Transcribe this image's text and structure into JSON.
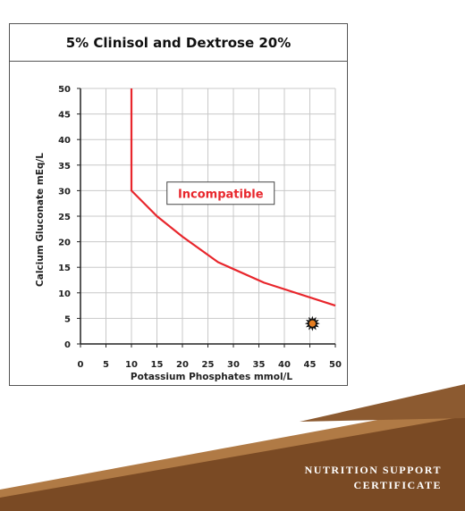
{
  "chart_data": {
    "type": "line",
    "title": "5% Clinisol and Dextrose 20%",
    "xlabel": "Potassium Phosphates mmol/L",
    "ylabel": "Calcium Gluconate mEq/L",
    "xlim": [
      0,
      50
    ],
    "ylim": [
      0,
      50
    ],
    "xticks": [
      0,
      5,
      10,
      15,
      20,
      25,
      30,
      35,
      40,
      45,
      50
    ],
    "yticks": [
      0,
      5,
      10,
      15,
      20,
      25,
      30,
      35,
      40,
      45,
      50
    ],
    "grid": true,
    "series": [
      {
        "color": "#e8262c",
        "x": [
          10,
          10,
          15,
          20,
          27,
          36,
          50
        ],
        "y": [
          50,
          30,
          25,
          21,
          16,
          12,
          7.5
        ]
      }
    ],
    "annotations": [
      {
        "text": "Incompatible",
        "x": 27.5,
        "y": 29.5,
        "color": "#e8262c"
      }
    ],
    "marker": {
      "x": 45.5,
      "y": 4,
      "icon": "starburst-icon",
      "color": "#c0392b"
    }
  },
  "footer": {
    "line1": "NUTRITION SUPPORT",
    "line2": "CERTIFICATE"
  },
  "colors": {
    "brown_dark": "#7a4a24",
    "brown_light": "#b07a45",
    "grid": "#c8c8c8"
  }
}
